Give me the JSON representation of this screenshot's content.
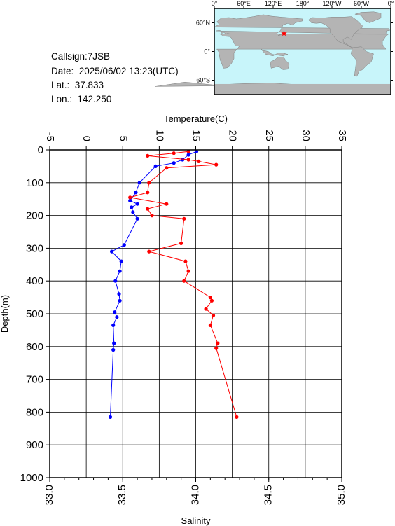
{
  "info": {
    "callsign": "Callsign:7JSB",
    "date": "Date:  2025/06/02 13:23(UTC)",
    "lat": "Lat.:  37.833",
    "lon": "Lon.:  142.250"
  },
  "map": {
    "lon_labels": [
      "0°",
      "60°E",
      "120°E",
      "180°",
      "120°W",
      "60°W",
      "0°"
    ],
    "lat_labels": [
      "60°N",
      "0°",
      "60°S"
    ],
    "station_lat": 37.833,
    "station_lon": 142.25,
    "ocean_color": "#c8f5fa",
    "land_color": "#b4b4b4",
    "marker_color": "#ff0000"
  },
  "chart_data": {
    "type": "line",
    "xlabel_top": "Temperature(C)",
    "xlabel_bottom": "Salinity",
    "ylabel": "Depth(m)",
    "temperature_ticks": [
      "-5",
      "0",
      "5",
      "10",
      "15",
      "20",
      "25",
      "30",
      "35"
    ],
    "salinity_ticks": [
      "33.0",
      "33.5",
      "34.0",
      "34.5",
      "35.0"
    ],
    "depth_ticks": [
      "0",
      "100",
      "200",
      "300",
      "400",
      "500",
      "600",
      "700",
      "800",
      "900",
      "1000"
    ],
    "temperature_range": [
      -5,
      35
    ],
    "salinity_range": [
      33.0,
      35.0
    ],
    "depth_range": [
      0,
      1000
    ],
    "grid": true,
    "series": [
      {
        "axis": "temperature",
        "color": "#0000ff",
        "points": [
          [
            15.1,
            5
          ],
          [
            14.0,
            15
          ],
          [
            13.2,
            30
          ],
          [
            12.0,
            40
          ],
          [
            9.5,
            50
          ],
          [
            7.3,
            100
          ],
          [
            6.8,
            130
          ],
          [
            6.0,
            155
          ],
          [
            7.0,
            165
          ],
          [
            6.2,
            175
          ],
          [
            6.4,
            190
          ],
          [
            7.0,
            210
          ],
          [
            5.2,
            290
          ],
          [
            3.5,
            310
          ],
          [
            4.8,
            340
          ],
          [
            4.6,
            370
          ],
          [
            4.0,
            400
          ],
          [
            4.5,
            440
          ],
          [
            4.6,
            460
          ],
          [
            3.9,
            495
          ],
          [
            4.2,
            510
          ],
          [
            3.7,
            535
          ],
          [
            3.8,
            590
          ],
          [
            3.7,
            610
          ],
          [
            3.3,
            815
          ]
        ]
      },
      {
        "axis": "salinity",
        "color": "#ff0000",
        "points": [
          [
            33.95,
            5
          ],
          [
            33.85,
            10
          ],
          [
            33.67,
            18
          ],
          [
            33.95,
            30
          ],
          [
            34.02,
            35
          ],
          [
            34.14,
            45
          ],
          [
            33.8,
            55
          ],
          [
            33.68,
            100
          ],
          [
            33.67,
            130
          ],
          [
            33.55,
            145
          ],
          [
            33.8,
            165
          ],
          [
            33.67,
            180
          ],
          [
            33.7,
            200
          ],
          [
            33.92,
            210
          ],
          [
            33.9,
            285
          ],
          [
            33.68,
            310
          ],
          [
            33.93,
            340
          ],
          [
            33.95,
            370
          ],
          [
            33.92,
            400
          ],
          [
            34.1,
            450
          ],
          [
            34.11,
            460
          ],
          [
            34.07,
            485
          ],
          [
            34.12,
            505
          ],
          [
            34.1,
            535
          ],
          [
            34.15,
            590
          ],
          [
            34.14,
            605
          ],
          [
            34.28,
            815
          ]
        ]
      }
    ]
  }
}
